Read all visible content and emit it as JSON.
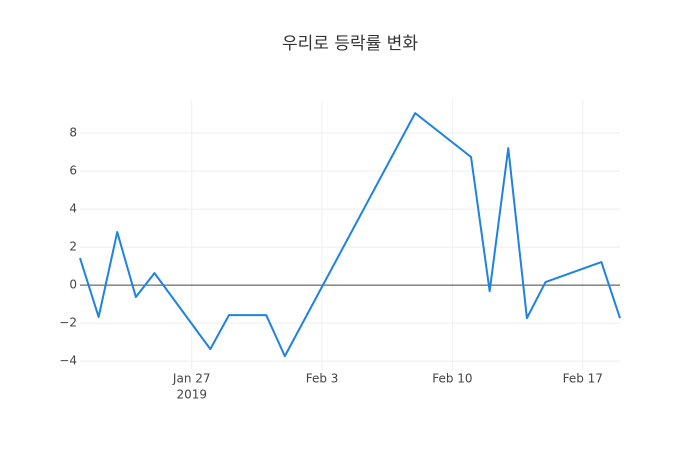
{
  "chart_data": {
    "type": "line",
    "title": "우리로 등락률 변화",
    "x": [
      "2019-01-21",
      "2019-01-22",
      "2019-01-23",
      "2019-01-24",
      "2019-01-25",
      "2019-01-28",
      "2019-01-29",
      "2019-01-31",
      "2019-02-01",
      "2019-02-08",
      "2019-02-11",
      "2019-02-12",
      "2019-02-13",
      "2019-02-14",
      "2019-02-15",
      "2019-02-18",
      "2019-02-19"
    ],
    "series": [
      {
        "color": "#1f82e0",
        "values": [
          1.42,
          -1.68,
          2.79,
          -0.63,
          0.63,
          -3.37,
          -1.58,
          -1.58,
          -3.74,
          9.05,
          6.74,
          -0.32,
          7.21,
          -1.74,
          0.16,
          1.21,
          -1.74
        ]
      }
    ],
    "xlim": [
      "2019-01-21",
      "2019-02-19"
    ],
    "xticks": [
      {
        "value": "2019-01-27",
        "label": "Jan 27",
        "label2": "2019"
      },
      {
        "value": "2019-02-03",
        "label": "Feb 3"
      },
      {
        "value": "2019-02-10",
        "label": "Feb 10"
      },
      {
        "value": "2019-02-17",
        "label": "Feb 17"
      }
    ],
    "ylim": [
      -4.47,
      9.74
    ],
    "yticks": [
      {
        "value": -4,
        "label": "−4"
      },
      {
        "value": -2,
        "label": "−2"
      },
      0,
      2,
      4,
      6,
      8
    ],
    "grid": true,
    "zeroline": true
  }
}
